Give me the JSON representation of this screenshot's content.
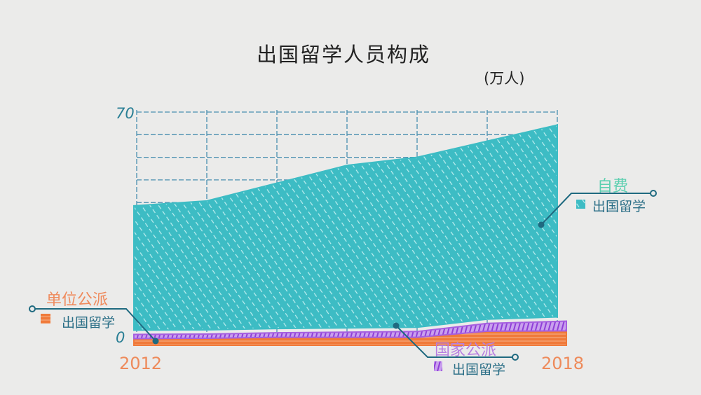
{
  "chart_data": {
    "type": "area",
    "stacked": true,
    "title": "出国留学人员构成",
    "unit": "(万人)",
    "x": [
      2012,
      2013,
      2014,
      2015,
      2016,
      2017,
      2018
    ],
    "x_tick_labels": [
      "2012",
      "2018"
    ],
    "y_tick_labels": [
      "0",
      "70"
    ],
    "ylim": [
      0,
      70
    ],
    "grid": true,
    "series": [
      {
        "name": "单位公派",
        "sub": "出国留学",
        "color": "#f07a3a",
        "values": [
          1.2,
          1.3,
          1.6,
          1.6,
          1.6,
          3.5,
          3.6
        ]
      },
      {
        "name": "国家公派",
        "sub": "出国留学",
        "color": "#a65fe0",
        "values": [
          1.3,
          1.3,
          1.4,
          1.6,
          1.8,
          2.4,
          3.0
        ]
      },
      {
        "name": "自费",
        "sub": "出国留学",
        "color": "#3dbcc4",
        "values": [
          38.5,
          39.9,
          45.0,
          50.3,
          52.6,
          55.1,
          59.4
        ]
      }
    ]
  },
  "label_colors": {
    "unit": "#ef8a5c",
    "state": "#b77ee0",
    "self": "#5ccfb0",
    "sub": "#2a6e86"
  }
}
